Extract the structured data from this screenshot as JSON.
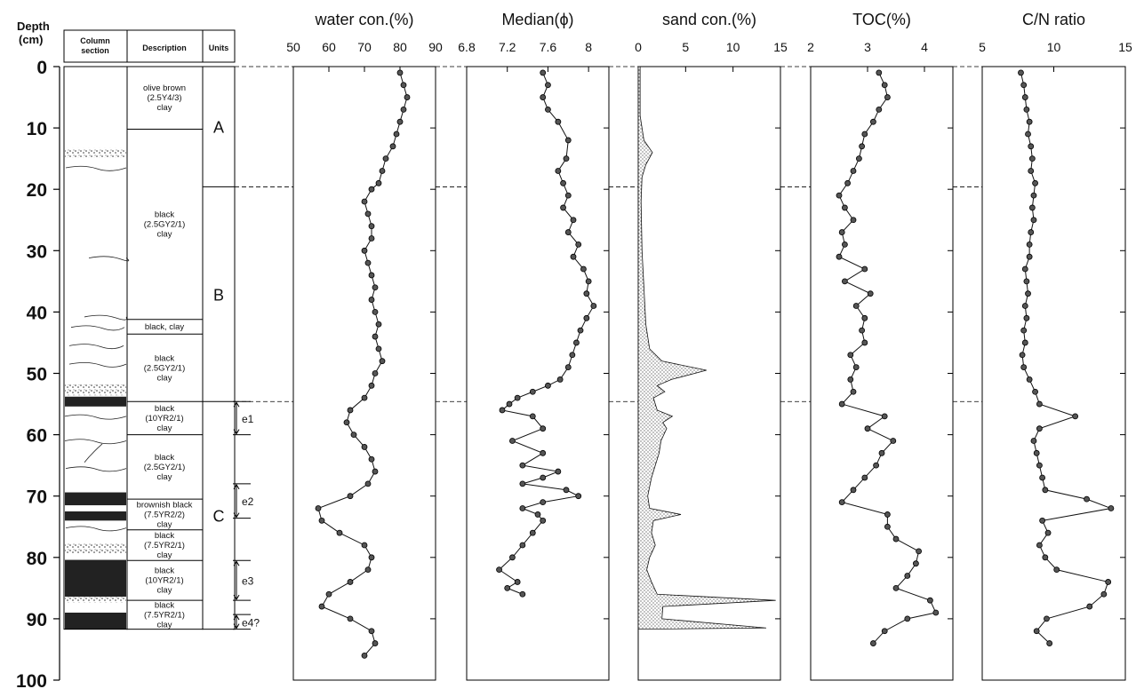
{
  "header": {
    "depth_label_1": "Depth",
    "depth_label_2": "(cm)",
    "column_header_1": "Column",
    "column_header_2": "section",
    "description_header": "Description",
    "units_header": "Units"
  },
  "units": [
    "A",
    "B",
    "C"
  ],
  "unit_boundaries_cm": [
    0,
    19.6,
    54.6,
    91.7
  ],
  "events": [
    {
      "label": "e1",
      "top": 54.6,
      "bottom": 60.0
    },
    {
      "label": "e2",
      "top": 68.0,
      "bottom": 73.6
    },
    {
      "label": "e3",
      "top": 80.5,
      "bottom": 87.0
    },
    {
      "label": "e4?",
      "top": 89.3,
      "bottom": 91.7
    }
  ],
  "descriptions": [
    {
      "lines": [
        "olive brown",
        "(2.5Y4/3)",
        "clay"
      ],
      "top": 0,
      "bottom": 10.2
    },
    {
      "lines": [
        "black",
        "(2.5GY2/1)",
        "clay"
      ],
      "top": 10.2,
      "bottom": 41.2
    },
    {
      "lines": [
        "black, clay"
      ],
      "top": 41.2,
      "bottom": 43.6
    },
    {
      "lines": [
        "black",
        "(2.5GY2/1)",
        "clay"
      ],
      "top": 43.6,
      "bottom": 54.6
    },
    {
      "lines": [
        "black",
        "(10YR2/1)",
        "clay"
      ],
      "top": 54.6,
      "bottom": 60.0
    },
    {
      "lines": [
        "black",
        "(2.5GY2/1)",
        "clay"
      ],
      "top": 60.0,
      "bottom": 70.5
    },
    {
      "lines": [
        "brownish black",
        "(7.5YR2/2)",
        "clay"
      ],
      "top": 70.5,
      "bottom": 75.5
    },
    {
      "lines": [
        "black",
        "(7.5YR2/1)",
        "clay"
      ],
      "top": 75.5,
      "bottom": 80.5
    },
    {
      "lines": [
        "black",
        "(10YR2/1)",
        "clay"
      ],
      "top": 80.5,
      "bottom": 87.0
    },
    {
      "lines": [
        "black",
        "(7.5YR2/1)",
        "clay"
      ],
      "top": 87.0,
      "bottom": 91.7
    }
  ],
  "chart_data": {
    "type": "line",
    "depth_axis": {
      "ylim": [
        0,
        100
      ],
      "ticks": [
        0,
        10,
        20,
        30,
        40,
        50,
        60,
        70,
        80,
        90,
        100
      ],
      "inverted": true
    },
    "reference_depths_cm": [
      0,
      19.6,
      54.6
    ],
    "panels": [
      {
        "title": "water con.(%)",
        "xlim": [
          50,
          90
        ],
        "xticks": [
          50,
          60,
          70,
          80,
          90
        ],
        "style": "line-points",
        "data": [
          [
            80,
            1
          ],
          [
            81,
            3
          ],
          [
            82,
            5
          ],
          [
            81,
            7
          ],
          [
            80,
            9
          ],
          [
            79,
            11
          ],
          [
            78,
            13
          ],
          [
            76,
            15
          ],
          [
            75,
            17
          ],
          [
            74,
            19
          ],
          [
            72,
            20
          ],
          [
            70,
            22
          ],
          [
            71,
            24
          ],
          [
            72,
            26
          ],
          [
            72,
            28
          ],
          [
            70,
            30
          ],
          [
            71,
            32
          ],
          [
            72,
            34
          ],
          [
            73,
            36
          ],
          [
            72,
            38
          ],
          [
            73,
            40
          ],
          [
            74,
            42
          ],
          [
            73,
            44
          ],
          [
            74,
            46
          ],
          [
            75,
            48
          ],
          [
            73,
            50
          ],
          [
            72,
            52
          ],
          [
            70,
            54
          ],
          [
            66,
            56
          ],
          [
            65,
            58
          ],
          [
            67,
            60
          ],
          [
            70,
            62
          ],
          [
            72,
            64
          ],
          [
            73,
            66
          ],
          [
            71,
            68
          ],
          [
            66,
            70
          ],
          [
            57,
            72
          ],
          [
            58,
            74
          ],
          [
            63,
            76
          ],
          [
            70,
            78
          ],
          [
            72,
            80
          ],
          [
            71,
            82
          ],
          [
            66,
            84
          ],
          [
            60,
            86
          ],
          [
            58,
            88
          ],
          [
            66,
            90
          ],
          [
            72,
            92
          ],
          [
            73,
            94
          ],
          [
            70,
            96
          ]
        ]
      },
      {
        "title": "Median(ϕ)",
        "xlim": [
          6.8,
          8.2
        ],
        "xticks": [
          6.8,
          7.2,
          7.6,
          8.0
        ],
        "style": "line-points",
        "data": [
          [
            7.55,
            1
          ],
          [
            7.6,
            3
          ],
          [
            7.55,
            5
          ],
          [
            7.6,
            7
          ],
          [
            7.7,
            9
          ],
          [
            7.8,
            12
          ],
          [
            7.78,
            15
          ],
          [
            7.7,
            17
          ],
          [
            7.75,
            19
          ],
          [
            7.8,
            21
          ],
          [
            7.75,
            23
          ],
          [
            7.85,
            25
          ],
          [
            7.8,
            27
          ],
          [
            7.9,
            29
          ],
          [
            7.85,
            31
          ],
          [
            7.95,
            33
          ],
          [
            8.0,
            35
          ],
          [
            7.98,
            37
          ],
          [
            8.05,
            39
          ],
          [
            7.98,
            41
          ],
          [
            7.92,
            43
          ],
          [
            7.88,
            45
          ],
          [
            7.84,
            47
          ],
          [
            7.8,
            49
          ],
          [
            7.72,
            51
          ],
          [
            7.6,
            52
          ],
          [
            7.45,
            53
          ],
          [
            7.3,
            54
          ],
          [
            7.22,
            55
          ],
          [
            7.15,
            56
          ],
          [
            7.45,
            57
          ],
          [
            7.55,
            59
          ],
          [
            7.25,
            61
          ],
          [
            7.55,
            63
          ],
          [
            7.35,
            65
          ],
          [
            7.7,
            66
          ],
          [
            7.55,
            67
          ],
          [
            7.35,
            68
          ],
          [
            7.78,
            69
          ],
          [
            7.9,
            70
          ],
          [
            7.55,
            71
          ],
          [
            7.35,
            72
          ],
          [
            7.5,
            73
          ],
          [
            7.55,
            74
          ],
          [
            7.45,
            76
          ],
          [
            7.35,
            78
          ],
          [
            7.25,
            80
          ],
          [
            7.12,
            82
          ],
          [
            7.3,
            84
          ],
          [
            7.2,
            85
          ],
          [
            7.35,
            86
          ]
        ]
      },
      {
        "title": "sand con.(%)",
        "xlim": [
          0,
          15
        ],
        "xticks": [
          0,
          5,
          10,
          15
        ],
        "style": "area-stipple",
        "data": [
          [
            0.2,
            0
          ],
          [
            0.2,
            8
          ],
          [
            0.6,
            12
          ],
          [
            1.5,
            14
          ],
          [
            0.8,
            16
          ],
          [
            0.4,
            18
          ],
          [
            0.3,
            22
          ],
          [
            0.4,
            30
          ],
          [
            0.6,
            36
          ],
          [
            0.8,
            42
          ],
          [
            1.2,
            46
          ],
          [
            2.5,
            48
          ],
          [
            7.2,
            49.5
          ],
          [
            3.5,
            51
          ],
          [
            2.0,
            52
          ],
          [
            2.8,
            53
          ],
          [
            1.6,
            54
          ],
          [
            2.0,
            56
          ],
          [
            3.6,
            57
          ],
          [
            2.6,
            58
          ],
          [
            3.0,
            59
          ],
          [
            2.4,
            61
          ],
          [
            2.2,
            63
          ],
          [
            1.8,
            65
          ],
          [
            1.4,
            67
          ],
          [
            1.0,
            70
          ],
          [
            1.2,
            72
          ],
          [
            4.5,
            73
          ],
          [
            1.6,
            74
          ],
          [
            1.4,
            76
          ],
          [
            1.8,
            78
          ],
          [
            1.2,
            80
          ],
          [
            0.9,
            82
          ],
          [
            1.4,
            84
          ],
          [
            2.0,
            86
          ],
          [
            14.5,
            87
          ],
          [
            2.6,
            88
          ],
          [
            2.5,
            90
          ],
          [
            13.5,
            91.5
          ],
          [
            0.2,
            91.7
          ]
        ]
      },
      {
        "title": "TOC(%)",
        "xlim": [
          2,
          4.5
        ],
        "xticks": [
          2,
          3,
          4
        ],
        "style": "line-points",
        "data": [
          [
            3.2,
            1
          ],
          [
            3.3,
            3
          ],
          [
            3.35,
            5
          ],
          [
            3.2,
            7
          ],
          [
            3.1,
            9
          ],
          [
            2.95,
            11
          ],
          [
            2.9,
            13
          ],
          [
            2.85,
            15
          ],
          [
            2.75,
            17
          ],
          [
            2.65,
            19
          ],
          [
            2.5,
            21
          ],
          [
            2.6,
            23
          ],
          [
            2.75,
            25
          ],
          [
            2.55,
            27
          ],
          [
            2.6,
            29
          ],
          [
            2.5,
            31
          ],
          [
            2.95,
            33
          ],
          [
            2.6,
            35
          ],
          [
            3.05,
            37
          ],
          [
            2.8,
            39
          ],
          [
            2.95,
            41
          ],
          [
            2.9,
            43
          ],
          [
            2.95,
            45
          ],
          [
            2.7,
            47
          ],
          [
            2.8,
            49
          ],
          [
            2.7,
            51
          ],
          [
            2.75,
            53
          ],
          [
            2.55,
            55
          ],
          [
            3.3,
            57
          ],
          [
            3.0,
            59
          ],
          [
            3.45,
            61
          ],
          [
            3.25,
            63
          ],
          [
            3.15,
            65
          ],
          [
            2.95,
            67
          ],
          [
            2.75,
            69
          ],
          [
            2.55,
            71
          ],
          [
            3.35,
            73
          ],
          [
            3.35,
            75
          ],
          [
            3.5,
            77
          ],
          [
            3.9,
            79
          ],
          [
            3.85,
            81
          ],
          [
            3.7,
            83
          ],
          [
            3.5,
            85
          ],
          [
            4.1,
            87
          ],
          [
            4.2,
            89
          ],
          [
            3.7,
            90
          ],
          [
            3.3,
            92
          ],
          [
            3.1,
            94
          ]
        ]
      },
      {
        "title": "C/N ratio",
        "xlim": [
          5,
          15
        ],
        "xticks": [
          5,
          10,
          15
        ],
        "style": "line-points",
        "data": [
          [
            7.7,
            1
          ],
          [
            7.9,
            3
          ],
          [
            8.0,
            5
          ],
          [
            8.1,
            7
          ],
          [
            8.3,
            9
          ],
          [
            8.2,
            11
          ],
          [
            8.4,
            13
          ],
          [
            8.5,
            15
          ],
          [
            8.4,
            17
          ],
          [
            8.7,
            19
          ],
          [
            8.6,
            21
          ],
          [
            8.5,
            23
          ],
          [
            8.6,
            25
          ],
          [
            8.4,
            27
          ],
          [
            8.3,
            29
          ],
          [
            8.3,
            31
          ],
          [
            8.0,
            33
          ],
          [
            8.1,
            35
          ],
          [
            8.2,
            37
          ],
          [
            8.0,
            39
          ],
          [
            8.1,
            41
          ],
          [
            7.9,
            43
          ],
          [
            8.0,
            45
          ],
          [
            7.8,
            47
          ],
          [
            7.9,
            49
          ],
          [
            8.3,
            51
          ],
          [
            8.7,
            53
          ],
          [
            9.0,
            55
          ],
          [
            11.5,
            57
          ],
          [
            9.0,
            59
          ],
          [
            8.6,
            61
          ],
          [
            8.8,
            63
          ],
          [
            9.0,
            65
          ],
          [
            9.2,
            67
          ],
          [
            9.4,
            69
          ],
          [
            12.3,
            70.5
          ],
          [
            14.0,
            72
          ],
          [
            9.2,
            74
          ],
          [
            9.6,
            76
          ],
          [
            9.0,
            78
          ],
          [
            9.4,
            80
          ],
          [
            10.2,
            82
          ],
          [
            13.8,
            84
          ],
          [
            13.5,
            86
          ],
          [
            12.5,
            88
          ],
          [
            9.5,
            90
          ],
          [
            8.8,
            92
          ],
          [
            9.7,
            94
          ]
        ]
      }
    ]
  }
}
